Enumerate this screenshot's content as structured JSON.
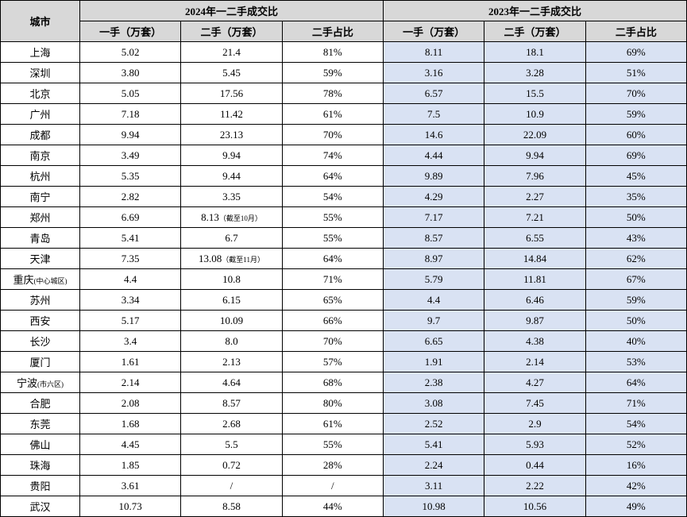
{
  "table": {
    "headers": {
      "city": "城市",
      "year_2024": "2024年一二手成交比",
      "year_2023": "2023年一二手成交比",
      "primary": "一手（万套）",
      "secondary": "二手（万套）",
      "ratio": "二手占比"
    },
    "columns_width": {
      "city": 100,
      "data": 127
    },
    "rows": [
      {
        "city": "上海",
        "p24": "5.02",
        "s24": "21.4",
        "s24_note": "",
        "r24": "81%",
        "p23": "8.11",
        "s23": "18.1",
        "r23": "69%"
      },
      {
        "city": "深圳",
        "p24": "3.80",
        "s24": "5.45",
        "s24_note": "",
        "r24": "59%",
        "p23": "3.16",
        "s23": "3.28",
        "r23": "51%"
      },
      {
        "city": "北京",
        "p24": "5.05",
        "s24": "17.56",
        "s24_note": "",
        "r24": "78%",
        "p23": "6.57",
        "s23": "15.5",
        "r23": "70%"
      },
      {
        "city": "广州",
        "p24": "7.18",
        "s24": "11.42",
        "s24_note": "",
        "r24": "61%",
        "p23": "7.5",
        "s23": "10.9",
        "r23": "59%"
      },
      {
        "city": "成都",
        "p24": "9.94",
        "s24": "23.13",
        "s24_note": "",
        "r24": "70%",
        "p23": "14.6",
        "s23": "22.09",
        "r23": "60%"
      },
      {
        "city": "南京",
        "p24": "3.49",
        "s24": "9.94",
        "s24_note": "",
        "r24": "74%",
        "p23": "4.44",
        "s23": "9.94",
        "r23": "69%"
      },
      {
        "city": "杭州",
        "p24": "5.35",
        "s24": "9.44",
        "s24_note": "",
        "r24": "64%",
        "p23": "9.89",
        "s23": "7.96",
        "r23": "45%"
      },
      {
        "city": "南宁",
        "p24": "2.82",
        "s24": "3.35",
        "s24_note": "",
        "r24": "54%",
        "p23": "4.29",
        "s23": "2.27",
        "r23": "35%"
      },
      {
        "city": "郑州",
        "p24": "6.69",
        "s24": "8.13",
        "s24_note": "（截至10月）",
        "r24": "55%",
        "p23": "7.17",
        "s23": "7.21",
        "r23": "50%"
      },
      {
        "city": "青岛",
        "p24": "5.41",
        "s24": "6.7",
        "s24_note": "",
        "r24": "55%",
        "p23": "8.57",
        "s23": "6.55",
        "r23": "43%"
      },
      {
        "city": "天津",
        "p24": "7.35",
        "s24": "13.08",
        "s24_note": "（截至11月）",
        "r24": "64%",
        "p23": "8.97",
        "s23": "14.84",
        "r23": "62%"
      },
      {
        "city": "重庆(中心城区)",
        "p24": "4.4",
        "s24": "10.8",
        "s24_note": "",
        "r24": "71%",
        "p23": "5.79",
        "s23": "11.81",
        "r23": "67%"
      },
      {
        "city": "苏州",
        "p24": "3.34",
        "s24": "6.15",
        "s24_note": "",
        "r24": "65%",
        "p23": "4.4",
        "s23": "6.46",
        "r23": "59%"
      },
      {
        "city": "西安",
        "p24": "5.17",
        "s24": "10.09",
        "s24_note": "",
        "r24": "66%",
        "p23": "9.7",
        "s23": "9.87",
        "r23": "50%"
      },
      {
        "city": "长沙",
        "p24": "3.4",
        "s24": "8.0",
        "s24_note": "",
        "r24": "70%",
        "p23": "6.65",
        "s23": "4.38",
        "r23": "40%"
      },
      {
        "city": "厦门",
        "p24": "1.61",
        "s24": "2.13",
        "s24_note": "",
        "r24": "57%",
        "p23": "1.91",
        "s23": "2.14",
        "r23": "53%"
      },
      {
        "city": "宁波(市六区)",
        "p24": "2.14",
        "s24": "4.64",
        "s24_note": "",
        "r24": "68%",
        "p23": "2.38",
        "s23": "4.27",
        "r23": "64%"
      },
      {
        "city": "合肥",
        "p24": "2.08",
        "s24": "8.57",
        "s24_note": "",
        "r24": "80%",
        "p23": "3.08",
        "s23": "7.45",
        "r23": "71%"
      },
      {
        "city": "东莞",
        "p24": "1.68",
        "s24": "2.68",
        "s24_note": "",
        "r24": "61%",
        "p23": "2.52",
        "s23": "2.9",
        "r23": "54%"
      },
      {
        "city": "佛山",
        "p24": "4.45",
        "s24": "5.5",
        "s24_note": "",
        "r24": "55%",
        "p23": "5.41",
        "s23": "5.93",
        "r23": "52%"
      },
      {
        "city": "珠海",
        "p24": "1.85",
        "s24": "0.72",
        "s24_note": "",
        "r24": "28%",
        "p23": "2.24",
        "s23": "0.44",
        "r23": "16%"
      },
      {
        "city": "贵阳",
        "p24": "3.61",
        "s24": "/",
        "s24_note": "",
        "r24": "/",
        "p23": "3.11",
        "s23": "2.22",
        "r23": "42%"
      },
      {
        "city": "武汉",
        "p24": "10.73",
        "s24": "8.58",
        "s24_note": "",
        "r24": "44%",
        "p23": "10.98",
        "s23": "10.56",
        "r23": "49%"
      }
    ],
    "colors": {
      "header_bg": "#d8d8d8",
      "year_2023_bg": "#d9e2f3",
      "border": "#000000",
      "text": "#000000"
    },
    "font_size": 13,
    "note_font_size": 9
  }
}
